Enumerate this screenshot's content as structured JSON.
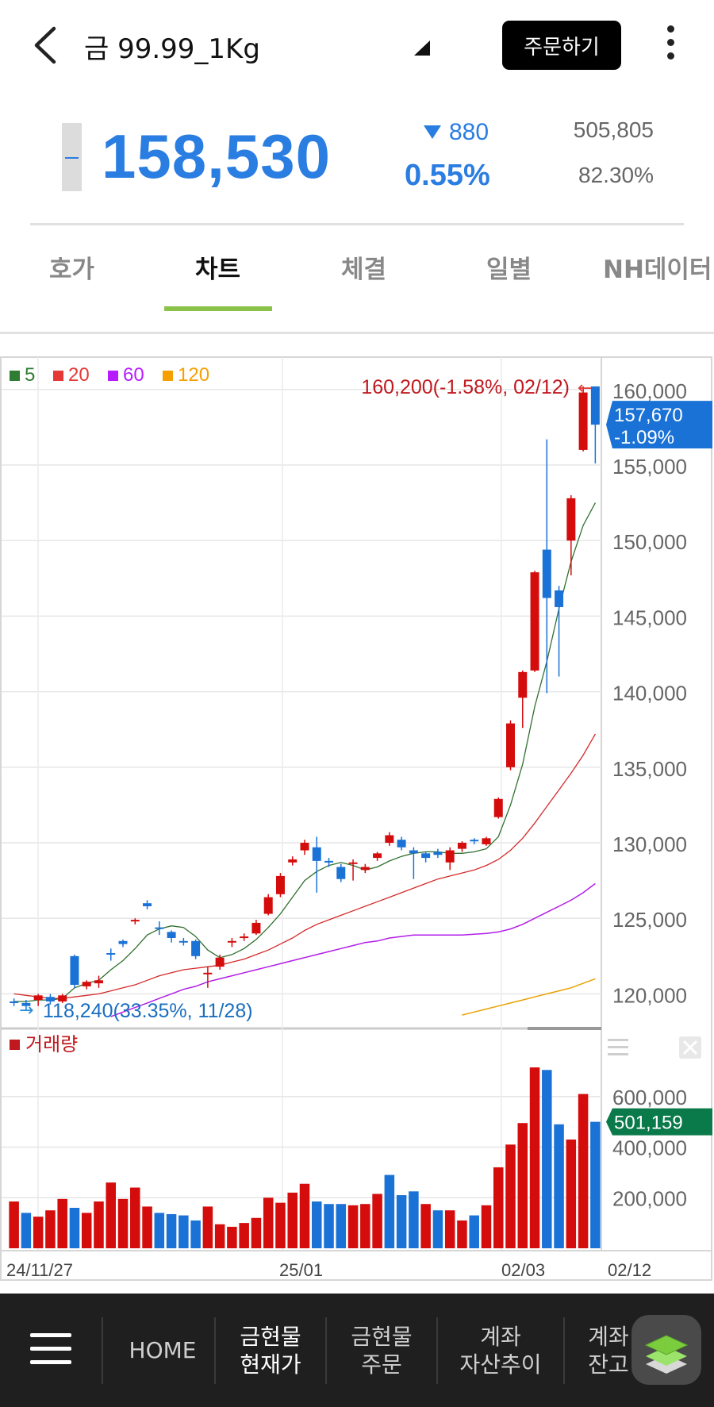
{
  "header": {
    "title": "금 99.99_1Kg",
    "order_button": "주문하기",
    "icons": {
      "back": "chevron-left-icon",
      "dropdown": "triangle-icon",
      "more": "more-vertical-icon"
    }
  },
  "quote": {
    "price": "158,530",
    "change": "880",
    "change_direction": "down",
    "change_pct": "0.55%",
    "volume": "505,805",
    "volume_ratio": "82.30%",
    "color_down": "#2a7de1"
  },
  "tabs": [
    {
      "label": "호가",
      "active": false
    },
    {
      "label": "차트",
      "active": true
    },
    {
      "label": "체결",
      "active": false
    },
    {
      "label": "일별",
      "active": false
    },
    {
      "label": "NH데이터",
      "active": false
    }
  ],
  "chart_data": {
    "type": "candlestick",
    "legend": [
      {
        "label": "5",
        "color": "#2e7d32"
      },
      {
        "label": "20",
        "color": "#e53935"
      },
      {
        "label": "60",
        "color": "#b71cff"
      },
      {
        "label": "120",
        "color": "#f5a000"
      }
    ],
    "price_axis": {
      "ticks": [
        120000,
        125000,
        130000,
        135000,
        140000,
        145000,
        150000,
        155000,
        160000
      ],
      "tick_labels": [
        "120,000",
        "125,000",
        "130,000",
        "135,000",
        "140,000",
        "145,000",
        "150,000",
        "155,000",
        "160,000"
      ],
      "range": [
        118500,
        161300
      ]
    },
    "high_annotation": "160,200(-1.58%, 02/12)",
    "low_annotation": "118,240(33.35%, 11/28)",
    "current_label": {
      "price": "157,670",
      "pct": "-1.09%"
    },
    "candles": [
      {
        "o": 119500,
        "c": 119400,
        "h": 119700,
        "l": 119200
      },
      {
        "o": 119400,
        "c": 119200,
        "h": 119600,
        "l": 118900
      },
      {
        "o": 119600,
        "c": 119900,
        "h": 120000,
        "l": 119200
      },
      {
        "o": 119800,
        "c": 119500,
        "h": 120000,
        "l": 119300
      },
      {
        "o": 119500,
        "c": 119900,
        "h": 120000,
        "l": 119400
      },
      {
        "o": 122500,
        "c": 120600,
        "h": 122600,
        "l": 120400
      },
      {
        "o": 120500,
        "c": 120800,
        "h": 120900,
        "l": 120300
      },
      {
        "o": 120700,
        "c": 120900,
        "h": 121200,
        "l": 120400
      },
      {
        "o": 122700,
        "c": 122600,
        "h": 123000,
        "l": 122200
      },
      {
        "o": 123500,
        "c": 123300,
        "h": 123600,
        "l": 123100
      },
      {
        "o": 124800,
        "c": 124900,
        "h": 125000,
        "l": 124600
      },
      {
        "o": 126000,
        "c": 125800,
        "h": 126200,
        "l": 125600
      },
      {
        "o": 124400,
        "c": 124300,
        "h": 124800,
        "l": 123900
      },
      {
        "o": 124100,
        "c": 123700,
        "h": 124200,
        "l": 123400
      },
      {
        "o": 123500,
        "c": 123400,
        "h": 123700,
        "l": 123200
      },
      {
        "o": 123500,
        "c": 122500,
        "h": 123600,
        "l": 122300
      },
      {
        "o": 121300,
        "c": 121400,
        "h": 121800,
        "l": 120400
      },
      {
        "o": 121800,
        "c": 122400,
        "h": 122600,
        "l": 121600
      },
      {
        "o": 123400,
        "c": 123500,
        "h": 123700,
        "l": 123100
      },
      {
        "o": 123700,
        "c": 123800,
        "h": 124000,
        "l": 123500
      },
      {
        "o": 124000,
        "c": 124700,
        "h": 124900,
        "l": 123900
      },
      {
        "o": 125300,
        "c": 126400,
        "h": 126600,
        "l": 125200
      },
      {
        "o": 126600,
        "c": 127800,
        "h": 128000,
        "l": 126400
      },
      {
        "o": 128700,
        "c": 128900,
        "h": 129100,
        "l": 128500
      },
      {
        "o": 129500,
        "c": 130000,
        "h": 130200,
        "l": 129200
      },
      {
        "o": 129700,
        "c": 128800,
        "h": 130400,
        "l": 126700
      },
      {
        "o": 128800,
        "c": 128700,
        "h": 129000,
        "l": 128400
      },
      {
        "o": 128400,
        "c": 127600,
        "h": 128600,
        "l": 127400
      },
      {
        "o": 128600,
        "c": 128700,
        "h": 128900,
        "l": 127500
      },
      {
        "o": 128200,
        "c": 128400,
        "h": 128600,
        "l": 128000
      },
      {
        "o": 129000,
        "c": 129300,
        "h": 129400,
        "l": 128800
      },
      {
        "o": 130000,
        "c": 130500,
        "h": 130700,
        "l": 129800
      },
      {
        "o": 130200,
        "c": 129700,
        "h": 130400,
        "l": 129500
      },
      {
        "o": 129500,
        "c": 129300,
        "h": 129700,
        "l": 127600
      },
      {
        "o": 129300,
        "c": 129000,
        "h": 129400,
        "l": 128700
      },
      {
        "o": 129400,
        "c": 129200,
        "h": 129600,
        "l": 129000
      },
      {
        "o": 128700,
        "c": 129500,
        "h": 129700,
        "l": 128200
      },
      {
        "o": 129600,
        "c": 130000,
        "h": 130100,
        "l": 129400
      },
      {
        "o": 130200,
        "c": 130100,
        "h": 130300,
        "l": 129900
      },
      {
        "o": 129900,
        "c": 130300,
        "h": 130400,
        "l": 129800
      },
      {
        "o": 131700,
        "c": 132900,
        "h": 133000,
        "l": 131600
      },
      {
        "o": 135000,
        "c": 137900,
        "h": 138100,
        "l": 134800
      },
      {
        "o": 139600,
        "c": 141300,
        "h": 141400,
        "l": 137600
      },
      {
        "o": 141400,
        "c": 147900,
        "h": 148000,
        "l": 141300
      },
      {
        "o": 149400,
        "c": 146200,
        "h": 156700,
        "l": 139900
      },
      {
        "o": 146700,
        "c": 145600,
        "h": 147000,
        "l": 141000
      },
      {
        "o": 150000,
        "c": 152800,
        "h": 153000,
        "l": 147700
      },
      {
        "o": 156000,
        "c": 159800,
        "h": 160200,
        "l": 155900
      },
      {
        "o": 160200,
        "c": 157670,
        "h": 160200,
        "l": 155100
      }
    ],
    "moving_averages": {
      "ma5": [
        119500,
        119500,
        119600,
        119600,
        119700,
        120400,
        120700,
        120900,
        121600,
        122200,
        123000,
        123900,
        124300,
        124500,
        124400,
        123800,
        122900,
        122400,
        122600,
        123000,
        123600,
        124400,
        125300,
        126400,
        127500,
        128100,
        128500,
        128700,
        128500,
        128200,
        128400,
        128800,
        129100,
        129300,
        129400,
        129400,
        129300,
        129300,
        129400,
        129600,
        130400,
        132500,
        135200,
        139000,
        142000,
        145500,
        148600,
        151000,
        152500
      ],
      "ma20": [
        120000,
        119900,
        119800,
        119700,
        119700,
        119800,
        119900,
        120000,
        120200,
        120400,
        120600,
        120900,
        121200,
        121400,
        121600,
        121700,
        121800,
        121900,
        122100,
        122300,
        122600,
        122900,
        123300,
        123700,
        124200,
        124600,
        124900,
        125200,
        125500,
        125800,
        126100,
        126400,
        126700,
        127000,
        127300,
        127600,
        127800,
        128000,
        128200,
        128500,
        128900,
        129500,
        130300,
        131300,
        132400,
        133500,
        134600,
        135800,
        137200
      ],
      "ma60": [
        null,
        null,
        null,
        null,
        null,
        null,
        null,
        null,
        118500,
        118800,
        119100,
        119400,
        119700,
        120000,
        120300,
        120500,
        120800,
        121000,
        121200,
        121400,
        121600,
        121800,
        122000,
        122200,
        122400,
        122600,
        122800,
        123000,
        123200,
        123400,
        123500,
        123700,
        123800,
        123900,
        123900,
        123900,
        123900,
        123900,
        123950,
        124000,
        124100,
        124300,
        124600,
        125000,
        125400,
        125800,
        126200,
        126700,
        127300
      ],
      "ma120": [
        null,
        null,
        null,
        null,
        null,
        null,
        null,
        null,
        null,
        null,
        null,
        null,
        null,
        null,
        null,
        null,
        null,
        null,
        null,
        null,
        null,
        null,
        null,
        null,
        null,
        null,
        null,
        null,
        null,
        null,
        null,
        null,
        null,
        null,
        null,
        null,
        null,
        118600,
        118800,
        119000,
        119200,
        119400,
        119600,
        119800,
        120000,
        120200,
        120400,
        120700,
        121000
      ]
    },
    "volume": {
      "label": "거래량",
      "ticks": [
        200000,
        400000,
        600000
      ],
      "tick_labels": [
        "200,000",
        "400,000",
        "600,000"
      ],
      "current": "501,159",
      "values": [
        185000,
        140000,
        125000,
        150000,
        195000,
        160000,
        140000,
        185000,
        260000,
        195000,
        240000,
        165000,
        140000,
        135000,
        130000,
        110000,
        165000,
        95000,
        85000,
        100000,
        120000,
        200000,
        180000,
        220000,
        255000,
        185000,
        175000,
        175000,
        170000,
        175000,
        215000,
        290000,
        210000,
        225000,
        175000,
        150000,
        150000,
        110000,
        130000,
        170000,
        320000,
        410000,
        495000,
        715000,
        705000,
        490000,
        430000,
        610000,
        500000
      ],
      "up": [
        true,
        false,
        true,
        true,
        true,
        false,
        true,
        true,
        true,
        true,
        true,
        true,
        false,
        false,
        false,
        false,
        true,
        true,
        true,
        true,
        true,
        true,
        true,
        true,
        true,
        false,
        false,
        false,
        true,
        true,
        true,
        false,
        false,
        false,
        true,
        false,
        true,
        true,
        false,
        true,
        true,
        true,
        true,
        true,
        false,
        false,
        true,
        true,
        false
      ]
    },
    "x_labels": [
      "24/11/27",
      "25/01",
      "02/03",
      "02/12"
    ],
    "colors": {
      "up": "#d40c0c",
      "down": "#1a72d6",
      "volume_badge": "#0a7a4a"
    }
  },
  "bottom_nav": {
    "items": [
      {
        "label": "HOME",
        "lines": [
          "HOME"
        ],
        "active": false
      },
      {
        "label": "금현물 현재가",
        "lines": [
          "금현물",
          "현재가"
        ],
        "active": true
      },
      {
        "label": "금현물 주문",
        "lines": [
          "금현물",
          "주문"
        ],
        "active": false
      },
      {
        "label": "계좌 자산추이",
        "lines": [
          "계좌",
          "자산추이"
        ],
        "active": false
      },
      {
        "label": "계좌 잔고",
        "lines": [
          "계좌",
          "잔고"
        ],
        "active": false
      }
    ]
  }
}
